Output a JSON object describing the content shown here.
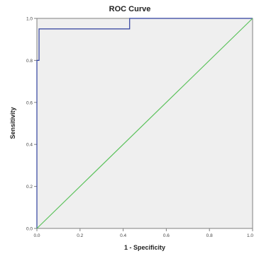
{
  "chart_data": {
    "type": "line",
    "title": "ROC Curve",
    "xlabel": "1 - Specificity",
    "ylabel": "Sensitivity",
    "xlim": [
      0,
      1
    ],
    "ylim": [
      0,
      1
    ],
    "x_ticks": [
      "0.0",
      "0.2",
      "0.4",
      "0.6",
      "0.8",
      "1.0"
    ],
    "y_ticks": [
      "0.0",
      "0.2",
      "0.4",
      "0.6",
      "0.8",
      "1.0"
    ],
    "grid": false,
    "legend": "none",
    "background_color": "#efefef",
    "series": [
      {
        "color": "#2f3f9e",
        "points": [
          {
            "x": 0.0,
            "y": 0.0
          },
          {
            "x": 0.0,
            "y": 0.8
          },
          {
            "x": 0.01,
            "y": 0.8
          },
          {
            "x": 0.01,
            "y": 0.95
          },
          {
            "x": 0.43,
            "y": 0.95
          },
          {
            "x": 0.43,
            "y": 1.0
          },
          {
            "x": 1.0,
            "y": 1.0
          }
        ]
      },
      {
        "color": "#5cc25c",
        "points": [
          {
            "x": 0.0,
            "y": 0.0
          },
          {
            "x": 1.0,
            "y": 1.0
          }
        ]
      }
    ]
  }
}
